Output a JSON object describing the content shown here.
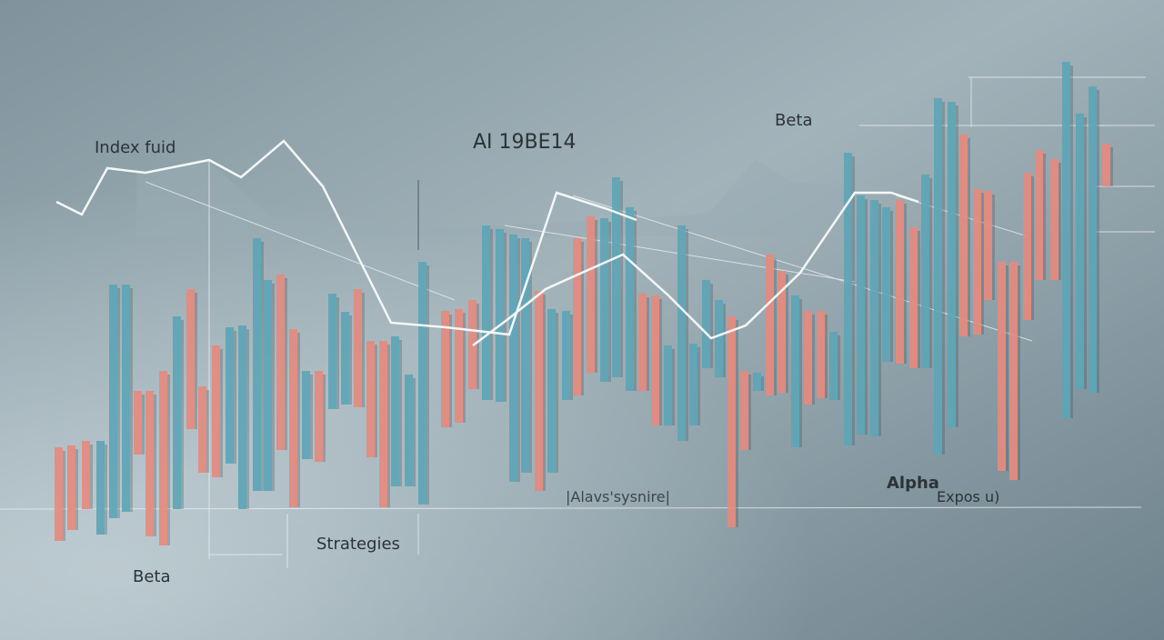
{
  "labels": {
    "index_fund": "Index fuid",
    "code": "AI 19BE14",
    "beta_top": "Beta",
    "alpha": "Alpha",
    "exposure": "Expos u)",
    "caption": "|Alavs'sysnire|",
    "strategies": "Strategies",
    "beta_bottom": "Beta"
  }
}
